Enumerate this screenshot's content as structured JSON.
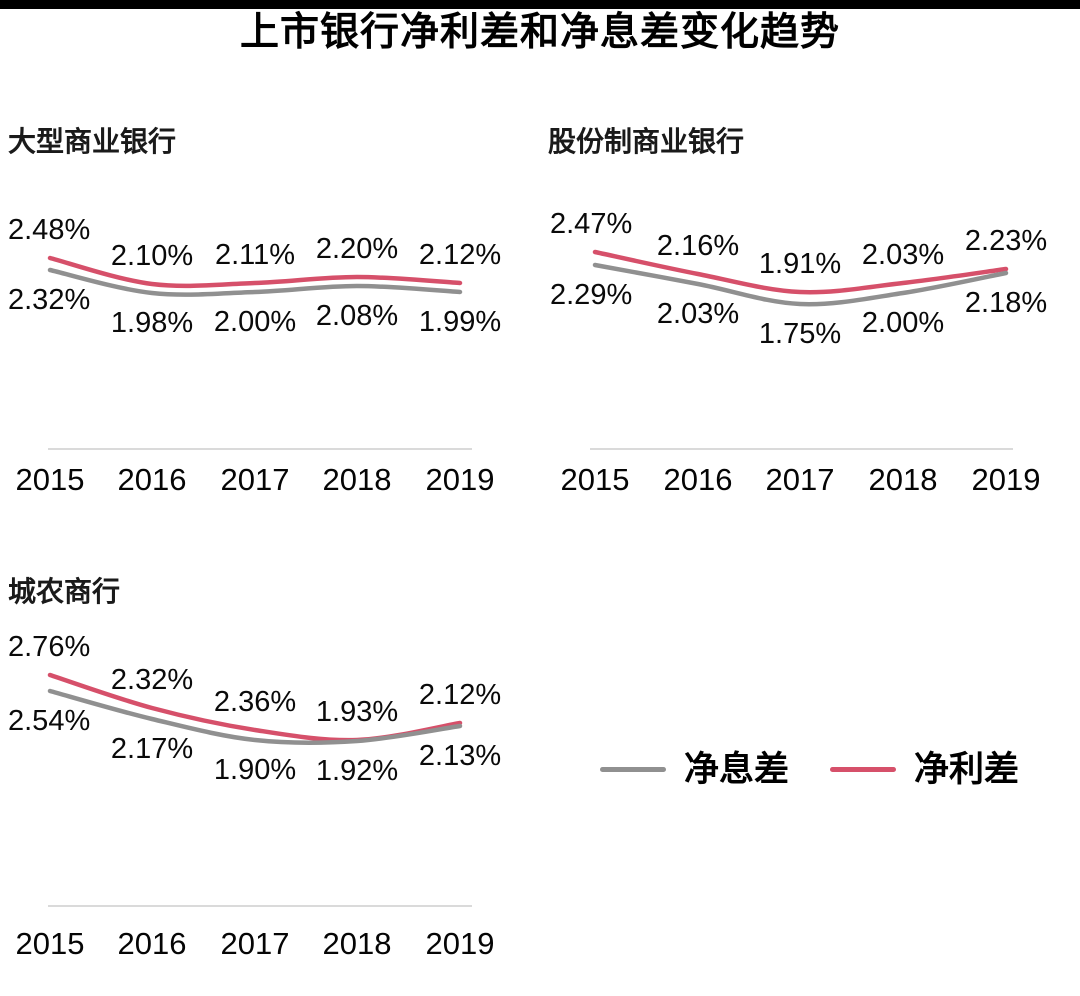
{
  "page": {
    "title": "上市银行净利差和净息差变化趋势"
  },
  "legend": {
    "items": [
      {
        "label": "净息差",
        "color": "#909090"
      },
      {
        "label": "净利差",
        "color": "#d6506a"
      }
    ]
  },
  "colors": {
    "net_interest_spread_line": "#d6506a",
    "net_interest_margin_line": "#909090",
    "axis": "#dadada",
    "text": "#0a0a0a"
  },
  "chart_data": [
    {
      "type": "line",
      "title": "大型商业银行",
      "x": [
        "2015",
        "2016",
        "2017",
        "2018",
        "2019"
      ],
      "unit": "%",
      "grid": false,
      "smooth": true,
      "data_labels": true,
      "y_axis_visible": false,
      "legend_position": "bottom-right-of-figure",
      "series": [
        {
          "name": "净利差",
          "color": "#d6506a",
          "values": [
            2.48,
            2.1,
            2.11,
            2.2,
            2.12
          ],
          "labels": [
            "2.48%",
            "2.10%",
            "2.11%",
            "2.20%",
            "2.12%"
          ]
        },
        {
          "name": "净息差",
          "color": "#909090",
          "values": [
            2.32,
            1.98,
            2.0,
            2.08,
            1.99
          ],
          "labels": [
            "2.32%",
            "1.98%",
            "2.00%",
            "2.08%",
            "1.99%"
          ]
        }
      ]
    },
    {
      "type": "line",
      "title": "股份制商业银行",
      "x": [
        "2015",
        "2016",
        "2017",
        "2018",
        "2019"
      ],
      "unit": "%",
      "grid": false,
      "smooth": true,
      "data_labels": true,
      "y_axis_visible": false,
      "series": [
        {
          "name": "净利差",
          "color": "#d6506a",
          "values": [
            2.47,
            2.16,
            1.91,
            2.03,
            2.23
          ],
          "labels": [
            "2.47%",
            "2.16%",
            "1.91%",
            "2.03%",
            "2.23%"
          ]
        },
        {
          "name": "净息差",
          "color": "#909090",
          "values": [
            2.29,
            2.03,
            1.75,
            2.0,
            2.18
          ],
          "labels": [
            "2.29%",
            "2.03%",
            "1.75%",
            "2.00%",
            "2.18%"
          ]
        }
      ]
    },
    {
      "type": "line",
      "title": "城农商行",
      "x": [
        "2015",
        "2016",
        "2017",
        "2018",
        "2019"
      ],
      "unit": "%",
      "grid": false,
      "smooth": true,
      "data_labels": true,
      "y_axis_visible": false,
      "series": [
        {
          "name": "净利差",
          "color": "#d6506a",
          "values": [
            2.76,
            2.32,
            2.36,
            1.93,
            2.12
          ],
          "labels": [
            "2.76%",
            "2.32%",
            "2.36%",
            "1.93%",
            "2.12%"
          ]
        },
        {
          "name": "净息差",
          "color": "#909090",
          "values": [
            2.54,
            2.17,
            1.9,
            1.92,
            2.13
          ],
          "labels": [
            "2.54%",
            "2.17%",
            "1.90%",
            "1.92%",
            "2.13%"
          ]
        }
      ]
    }
  ]
}
